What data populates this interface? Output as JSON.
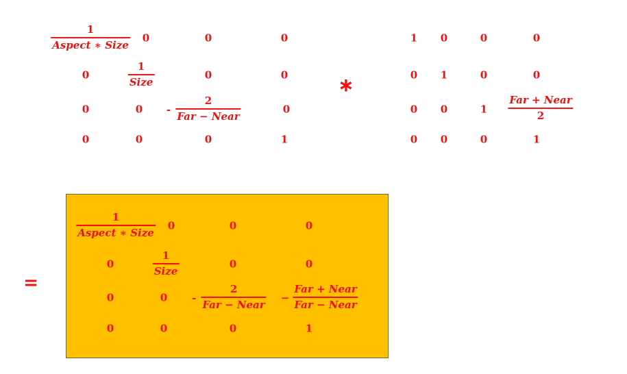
{
  "matrix_left": {
    "r0c0_num": "1",
    "r0c0_den": "Aspect ∗ Size",
    "r0c1": "0",
    "r0c2": "0",
    "r0c3": "0",
    "r1c0": "0",
    "r1c1_num": "1",
    "r1c1_den": "Size",
    "r1c2": "0",
    "r1c3": "0",
    "r2c0": "0",
    "r2c1": "0",
    "r2c2_sign": "-",
    "r2c2_num": "2",
    "r2c2_den": "Far − Near",
    "r2c3": "0",
    "r3c0": "0",
    "r3c1": "0",
    "r3c2": "0",
    "r3c3": "1"
  },
  "multiply_operator": "∗",
  "matrix_right": {
    "r0c0": "1",
    "r0c1": "0",
    "r0c2": "0",
    "r0c3": "0",
    "r1c0": "0",
    "r1c1": "1",
    "r1c2": "0",
    "r1c3": "0",
    "r2c0": "0",
    "r2c1": "0",
    "r2c2": "1",
    "r2c3_num": "Far + Near",
    "r2c3_den": "2",
    "r3c0": "0",
    "r3c1": "0",
    "r3c2": "0",
    "r3c3": "1"
  },
  "equals_operator": "=",
  "matrix_result": {
    "r0c0_num": "1",
    "r0c0_den": "Aspect ∗ Size",
    "r0c1": "0",
    "r0c2": "0",
    "r0c3": "0",
    "r1c0": "0",
    "r1c1_num": "1",
    "r1c1_den": "Size",
    "r1c2": "0",
    "r1c3": "0",
    "r2c0": "0",
    "r2c1": "0",
    "r2c2_sign": "-",
    "r2c2_num": "2",
    "r2c2_den": "Far − Near",
    "r2c3_sign": "−",
    "r2c3_num": "Far + Near",
    "r2c3_den": "Far  − Near",
    "r3c0": "0",
    "r3c1": "0",
    "r3c2": "0",
    "r3c3": "1"
  },
  "colors": {
    "text": "#ee1111",
    "result_background": "#ffc000"
  }
}
